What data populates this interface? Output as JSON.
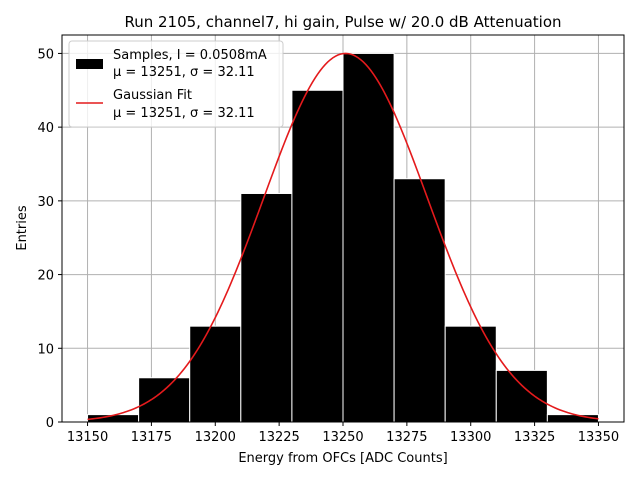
{
  "chart_data": {
    "type": "bar",
    "title": "Run 2105, channel7, hi gain, Pulse w/ 20.0 dB Attenuation",
    "xlabel": "Energy from OFCs [ADC Counts]",
    "ylabel": "Entries",
    "xlim": [
      13140,
      13360
    ],
    "ylim": [
      0,
      52.5
    ],
    "xticks": [
      13150,
      13175,
      13200,
      13225,
      13250,
      13275,
      13300,
      13325,
      13350
    ],
    "yticks": [
      0,
      10,
      20,
      30,
      40,
      50
    ],
    "grid": true,
    "legend_position": "top-left",
    "histogram": {
      "bin_edges": [
        13150,
        13170,
        13190,
        13210,
        13230,
        13250,
        13270,
        13290,
        13310,
        13330,
        13350
      ],
      "counts": [
        1,
        6,
        13,
        31,
        45,
        50,
        33,
        13,
        7,
        1
      ],
      "color": "#000000",
      "edge_color": "#ffffff"
    },
    "fit": {
      "mu": 13251,
      "sigma": 32.11,
      "amplitude": 50,
      "x_range": [
        13150,
        13350
      ],
      "color": "#e41a1c"
    },
    "legend": [
      {
        "kind": "patch",
        "color": "#000000",
        "line1": "Samples, I = 0.0508mA",
        "line2": "μ = 13251, σ = 32.11"
      },
      {
        "kind": "line",
        "color": "#e41a1c",
        "line1": "Gaussian Fit",
        "line2": "μ = 13251, σ = 32.11"
      }
    ]
  }
}
